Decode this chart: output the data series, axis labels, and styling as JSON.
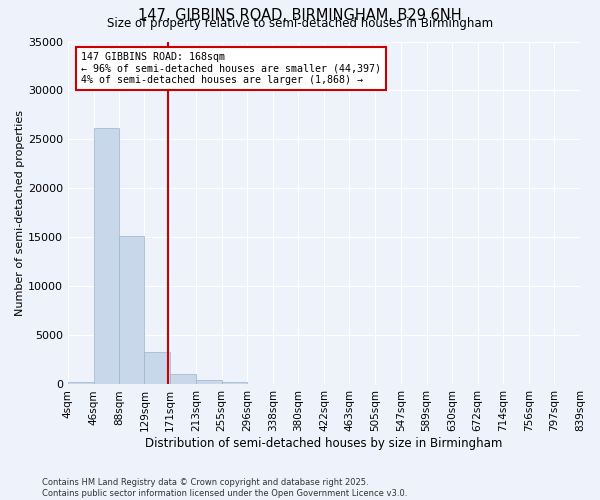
{
  "title": "147, GIBBINS ROAD, BIRMINGHAM, B29 6NH",
  "subtitle": "Size of property relative to semi-detached houses in Birmingham",
  "xlabel": "Distribution of semi-detached houses by size in Birmingham",
  "ylabel": "Number of semi-detached properties",
  "footnote": "Contains HM Land Registry data © Crown copyright and database right 2025.\nContains public sector information licensed under the Open Government Licence v3.0.",
  "property_label": "147 GIBBINS ROAD: 168sqm",
  "pct_smaller": "← 96% of semi-detached houses are smaller (44,397)",
  "pct_larger": "4% of semi-detached houses are larger (1,868) →",
  "property_sqm": 168,
  "bar_color": "#c8d8ea",
  "bar_edge_color": "#9ab4cc",
  "vline_color": "#cc0000",
  "background_color": "#eef2fb",
  "annotation_box_edgecolor": "#cc0000",
  "bins": [
    4,
    46,
    88,
    129,
    171,
    213,
    255,
    296,
    338,
    380,
    422,
    463,
    505,
    547,
    589,
    630,
    672,
    714,
    756,
    797,
    839
  ],
  "bin_labels": [
    "4sqm",
    "46sqm",
    "88sqm",
    "129sqm",
    "171sqm",
    "213sqm",
    "255sqm",
    "296sqm",
    "338sqm",
    "380sqm",
    "422sqm",
    "463sqm",
    "505sqm",
    "547sqm",
    "589sqm",
    "630sqm",
    "672sqm",
    "714sqm",
    "756sqm",
    "797sqm",
    "839sqm"
  ],
  "counts": [
    300,
    26200,
    15200,
    3350,
    1050,
    480,
    200,
    80,
    30,
    10,
    5,
    2,
    1,
    0,
    0,
    0,
    0,
    0,
    0,
    0
  ],
  "ylim": [
    0,
    35000
  ],
  "yticks": [
    0,
    5000,
    10000,
    15000,
    20000,
    25000,
    30000,
    35000
  ]
}
